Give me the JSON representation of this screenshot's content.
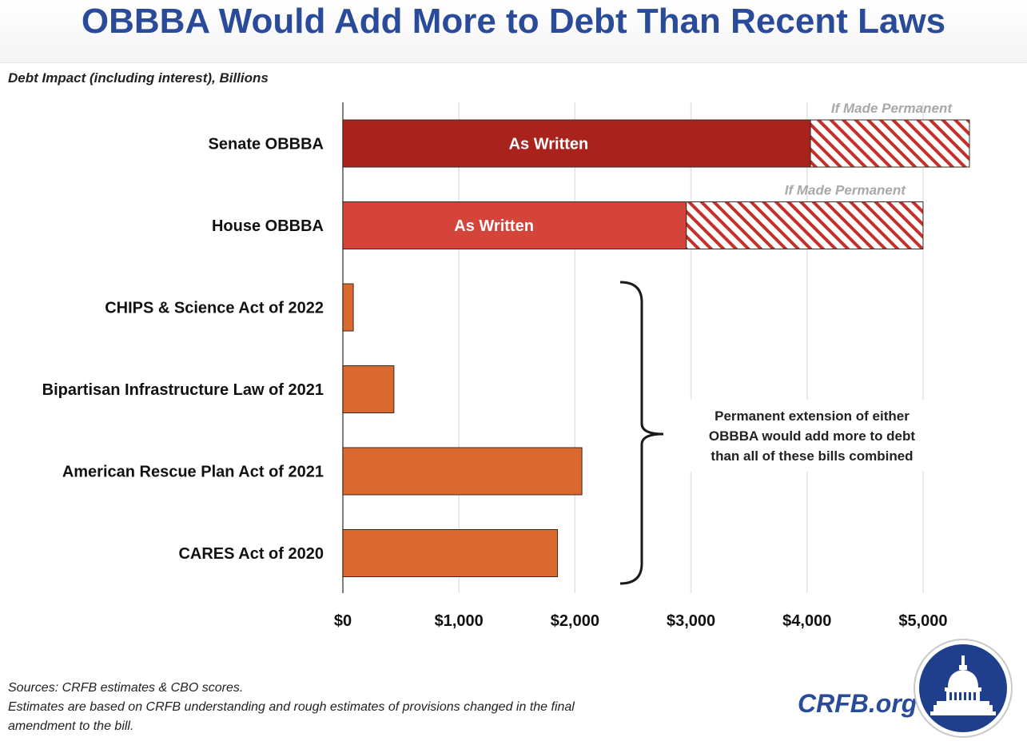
{
  "title": "OBBBA Would Add More to Debt Than Recent Laws",
  "chart_data": {
    "type": "bar",
    "orientation": "horizontal",
    "subtitle": "Debt Impact (including interest), Billions",
    "categories": [
      "Senate OBBBA",
      "House OBBBA",
      "CHIPS & Science Act of 2022",
      "Bipartisan Infrastructure Law of 2021",
      "American Rescue Plan Act of 2021",
      "CARES Act of 2020"
    ],
    "series": [
      {
        "name": "As Written",
        "values": [
          4030,
          2960,
          90,
          440,
          2060,
          1850
        ]
      },
      {
        "name": "If Made Permanent",
        "values": [
          1370,
          2040,
          null,
          null,
          null,
          null
        ]
      }
    ],
    "bar_labels": [
      "As Written",
      "As Written",
      "",
      "",
      "",
      ""
    ],
    "stack_labels": [
      "If Made Permanent",
      "If Made Permanent",
      "",
      "",
      "",
      ""
    ],
    "xlim": [
      0,
      5400
    ],
    "xticks": [
      0,
      1000,
      2000,
      3000,
      4000,
      5000
    ],
    "xtick_labels": [
      "$0",
      "$1,000",
      "$2,000",
      "$3,000",
      "$4,000",
      "$5,000"
    ],
    "grid": true,
    "colors": {
      "senate": "#a8231b",
      "house": "#d4443a",
      "laws": "#d9692e",
      "hatch_line": "#c4302a",
      "grid": "#e3e3e3"
    },
    "annotation": {
      "lines": [
        "Permanent extension of either",
        "OBBBA would add more to debt",
        "than all of these bills combined"
      ]
    }
  },
  "footer": {
    "line1": "Sources: CRFB estimates & CBO scores.",
    "line2": "Estimates are based on CRFB understanding and rough estimates of provisions changed in the final",
    "line3": "amendment to the bill."
  },
  "brand": "CRFB.org",
  "logo_icon": "capitol-dome-seal-icon"
}
